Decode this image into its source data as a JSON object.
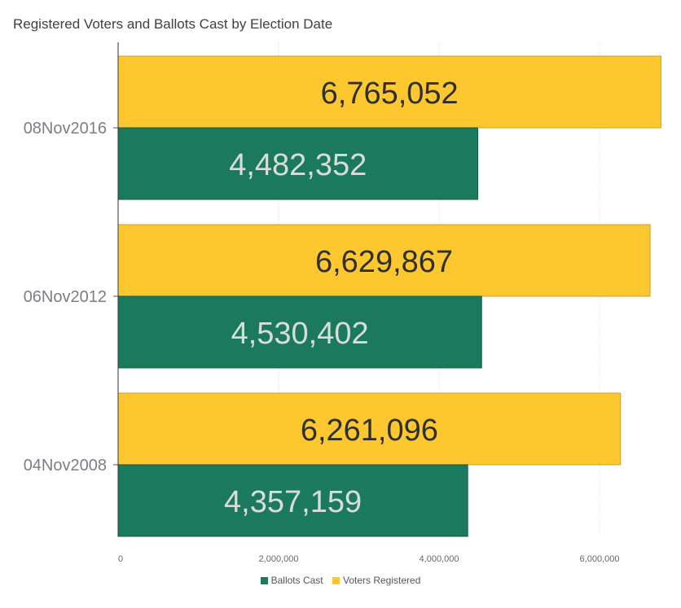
{
  "chart_data": {
    "type": "bar",
    "orientation": "horizontal",
    "title": "Registered Voters and Ballots Cast by Election Date",
    "categories": [
      "08Nov2016",
      "06Nov2012",
      "04Nov2008"
    ],
    "series": [
      {
        "name": "Voters Registered",
        "color": "#FDC82F",
        "values": [
          6765052,
          6629867,
          6261096
        ],
        "labels": [
          "6,765,052",
          "6,629,867",
          "6,261,096"
        ]
      },
      {
        "name": "Ballots Cast",
        "color": "#1B7A5E",
        "values": [
          4482352,
          4530402,
          4357159
        ],
        "labels": [
          "4,482,352",
          "4,530,402",
          "4,357,159"
        ]
      }
    ],
    "xlim": [
      0,
      6800000
    ],
    "xticks": [
      0,
      2000000,
      4000000,
      6000000
    ],
    "xtick_labels": [
      "0",
      "2,000,000",
      "4,000,000",
      "6,000,000"
    ],
    "grid": true,
    "legend_position": "bottom",
    "legend": [
      {
        "name": "Ballots Cast",
        "color": "#1B7A5E"
      },
      {
        "name": "Voters Registered",
        "color": "#FDC82F"
      }
    ]
  }
}
